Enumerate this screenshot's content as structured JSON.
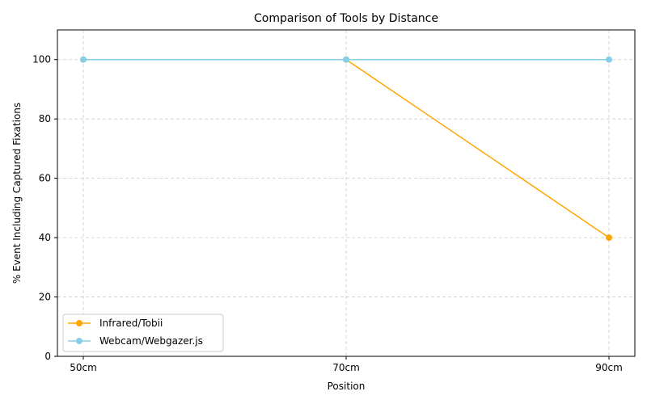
{
  "chart_data": {
    "type": "line",
    "title": "Comparison of Tools by Distance",
    "xlabel": "Position",
    "ylabel": "% Event Including Captured Fixations",
    "categories": [
      "50cm",
      "70cm",
      "90cm"
    ],
    "ylim": [
      0,
      110
    ],
    "yticks": [
      0,
      20,
      40,
      60,
      80,
      100
    ],
    "grid": true,
    "legend_position": "lower-left",
    "series": [
      {
        "name": "Infrared/Tobii",
        "color": "#ffa500",
        "values": [
          100,
          100,
          40
        ]
      },
      {
        "name": "Webcam/Webgazer.js",
        "color": "#87ceeb",
        "values": [
          100,
          100,
          100
        ]
      }
    ]
  }
}
